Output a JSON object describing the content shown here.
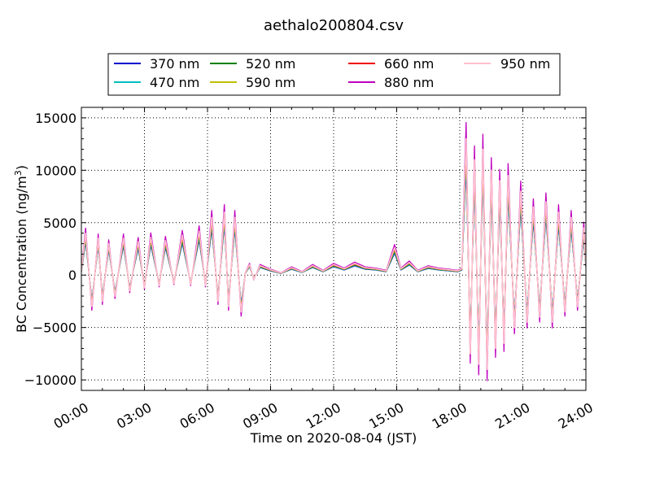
{
  "chart_data": {
    "type": "line",
    "title": "aethalo200804.csv",
    "xlabel": "Time on 2020-08-04 (JST)",
    "ylabel": "BC Concentration (ng/m³)",
    "ylabel_main": "BC Concentration (ng/m",
    "ylabel_sup": "3",
    "ylabel_tail": ")",
    "x_unit": "hours since 00:00",
    "xlim": [
      0,
      24
    ],
    "ylim": [
      -11000,
      16000
    ],
    "x_ticks": [
      0,
      3,
      6,
      9,
      12,
      15,
      18,
      21,
      24
    ],
    "x_tick_labels": [
      "00:00",
      "03:00",
      "06:00",
      "09:00",
      "12:00",
      "15:00",
      "18:00",
      "21:00",
      "24:00"
    ],
    "y_ticks": [
      -10000,
      -5000,
      0,
      5000,
      10000,
      15000
    ],
    "y_tick_labels": [
      "−10000",
      "−5000",
      "0",
      "5000",
      "10000",
      "15000"
    ],
    "grid": true,
    "legend_position": "top-center",
    "series": [
      {
        "name": "370 nm",
        "color": "#0000cc",
        "scale": 0.8
      },
      {
        "name": "470 nm",
        "color": "#00bfbf",
        "scale": 0.84
      },
      {
        "name": "520 nm",
        "color": "#008000",
        "scale": 0.88
      },
      {
        "name": "590 nm",
        "color": "#bfbf00",
        "scale": 0.92
      },
      {
        "name": "660 nm",
        "color": "#ee0000",
        "scale": 0.95
      },
      {
        "name": "880 nm",
        "color": "#bf00bf",
        "scale": 1.12
      },
      {
        "name": "950 nm",
        "color": "#ffc0cb",
        "scale": 1.0
      }
    ],
    "base_profile": {
      "x": [
        0.0,
        0.2,
        0.5,
        0.8,
        1.0,
        1.3,
        1.6,
        2.0,
        2.3,
        2.7,
        3.0,
        3.3,
        3.7,
        4.0,
        4.4,
        4.8,
        5.2,
        5.6,
        5.9,
        6.2,
        6.5,
        6.8,
        7.0,
        7.3,
        7.6,
        7.8,
        8.0,
        8.2,
        8.5,
        9.0,
        9.5,
        10.0,
        10.5,
        11.0,
        11.5,
        12.0,
        12.5,
        13.0,
        13.5,
        14.0,
        14.5,
        14.9,
        15.2,
        15.6,
        16.0,
        16.5,
        17.0,
        17.5,
        17.9,
        18.1,
        18.3,
        18.5,
        18.7,
        18.9,
        19.1,
        19.3,
        19.5,
        19.7,
        19.9,
        20.1,
        20.3,
        20.6,
        20.9,
        21.2,
        21.5,
        21.8,
        22.1,
        22.4,
        22.7,
        23.0,
        23.3,
        23.6,
        23.9,
        24.0
      ],
      "y": [
        400,
        4000,
        -3000,
        3500,
        -2500,
        3000,
        -2000,
        3500,
        -1500,
        3200,
        -1200,
        3600,
        -1000,
        3300,
        -800,
        3800,
        -900,
        4200,
        -1000,
        5500,
        -2500,
        6000,
        -3000,
        5500,
        -3500,
        200,
        1000,
        -400,
        900,
        500,
        200,
        700,
        300,
        900,
        400,
        1000,
        600,
        1100,
        700,
        600,
        400,
        2600,
        600,
        1200,
        400,
        800,
        600,
        500,
        400,
        600,
        13000,
        -7500,
        11000,
        -8500,
        12000,
        -9000,
        10000,
        -7000,
        9000,
        -6500,
        9500,
        -5000,
        8000,
        -4500,
        6500,
        -4000,
        7000,
        -4500,
        6000,
        -3500,
        5500,
        -3000,
        4500,
        1000
      ]
    }
  }
}
